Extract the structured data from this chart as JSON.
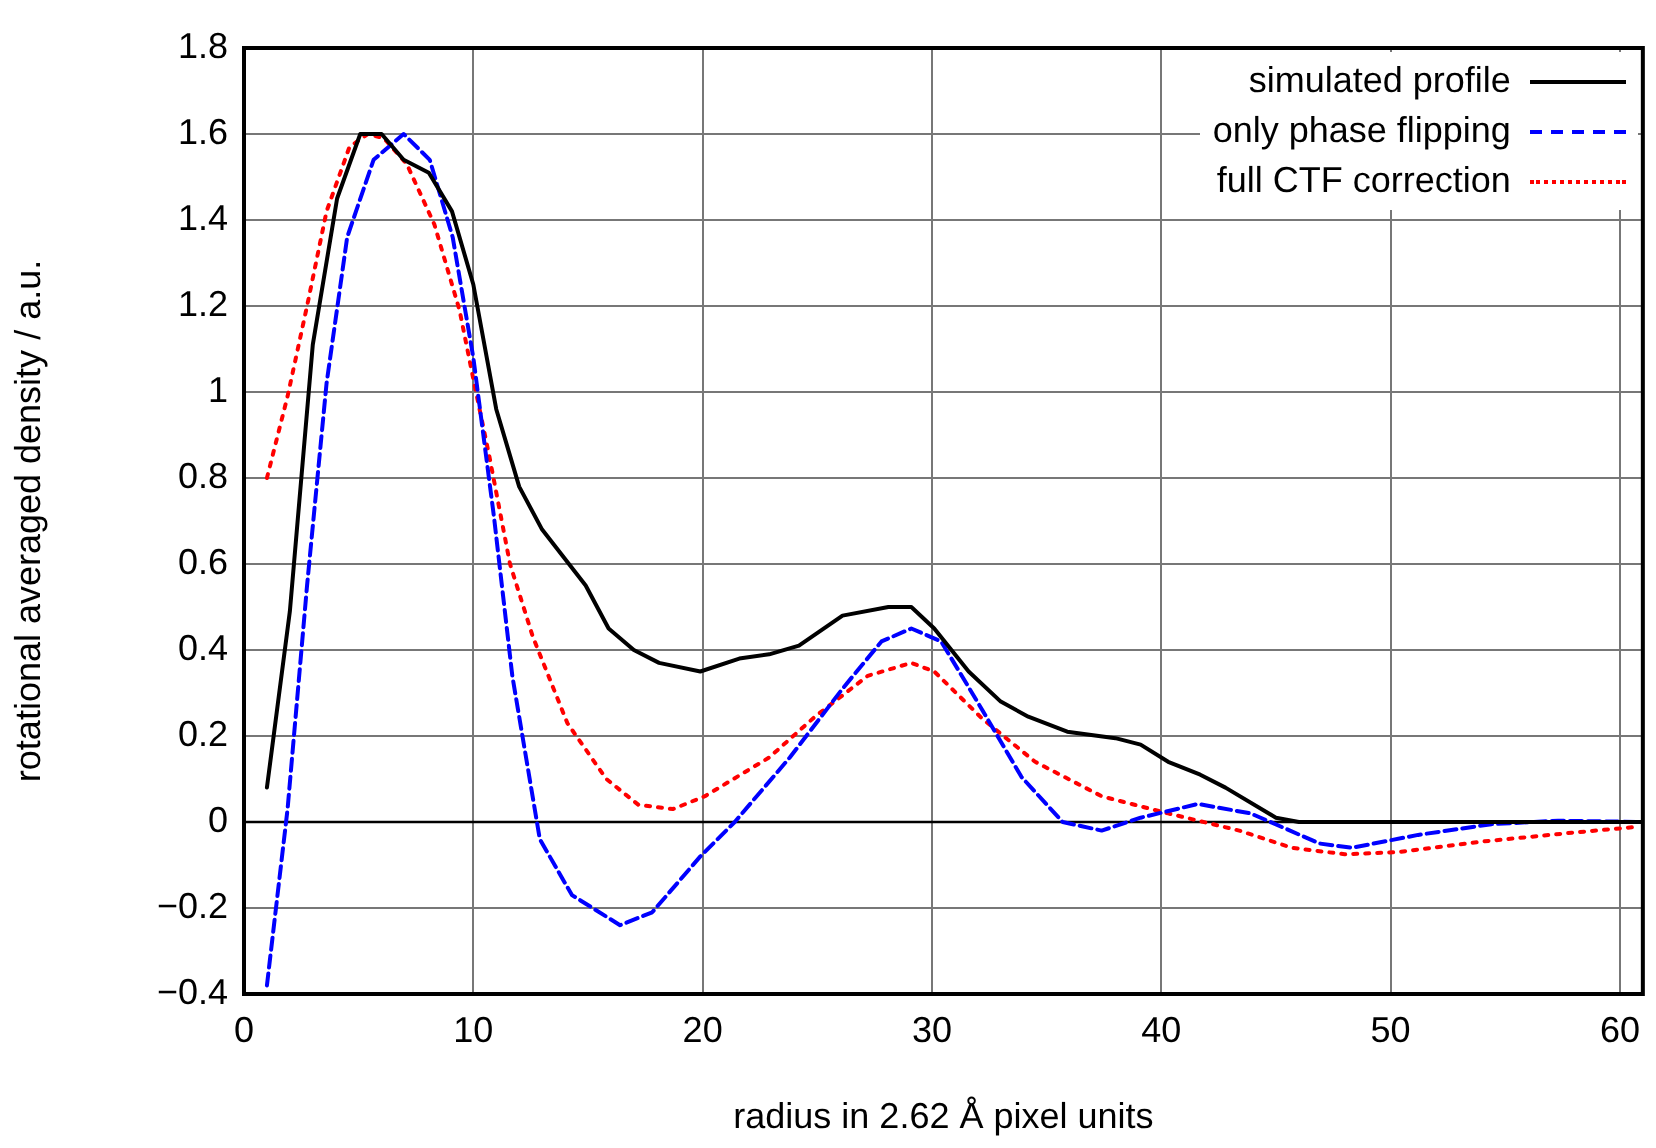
{
  "chart_data": {
    "type": "line",
    "xlabel": "radius in 2.62 Å pixel units",
    "ylabel": "rotational averaged density / a.u.",
    "xlim": [
      0,
      61
    ],
    "xticks": [
      0,
      10,
      20,
      30,
      40,
      50,
      60
    ],
    "ylim": [
      -0.4,
      1.8
    ],
    "yticks": [
      {
        "value": -0.4,
        "label": "−0.4"
      },
      {
        "value": -0.2,
        "label": "−0.2"
      },
      0,
      0.2,
      0.4,
      0.6,
      0.8,
      1,
      1.2,
      1.4,
      1.6,
      1.8
    ],
    "grid": true,
    "legend": "top right",
    "marker": "none",
    "ref_lines": [
      {
        "axis": "y",
        "value": 0,
        "color": "#000000",
        "line_style": "solid"
      }
    ],
    "series": [
      {
        "name": "simulated profile",
        "color": "#000000",
        "line_style": "solid",
        "x": [
          1.0,
          2.0,
          3.0,
          4.06,
          5.07,
          6.0,
          6.96,
          8.06,
          9.07,
          10,
          11,
          12,
          13,
          14.9,
          15.9,
          17,
          18.1,
          19.9,
          21.6,
          22.9,
          24.2,
          26.1,
          28.1,
          29.1,
          30.1,
          31.6,
          33,
          34.2,
          35.9,
          38,
          39.1,
          40.3,
          41.7,
          42.8,
          45,
          46,
          50,
          55,
          61
        ],
        "values": [
          0.08,
          0.49,
          1.11,
          1.45,
          1.6,
          1.6,
          1.54,
          1.51,
          1.42,
          1.25,
          0.96,
          0.78,
          0.68,
          0.55,
          0.45,
          0.4,
          0.37,
          0.35,
          0.38,
          0.39,
          0.41,
          0.48,
          0.5,
          0.5,
          0.45,
          0.35,
          0.28,
          0.245,
          0.21,
          0.195,
          0.18,
          0.14,
          0.11,
          0.08,
          0.01,
          0,
          0,
          0,
          0
        ]
      },
      {
        "name": "only phase flipping",
        "color": "#0000ff",
        "line_style": "dashed",
        "x": [
          1.0,
          1.9,
          2.75,
          3.6,
          4.5,
          5.65,
          6.96,
          8.1,
          9.1,
          10,
          10.9,
          11.7,
          12.9,
          14.3,
          16.4,
          17.8,
          19.9,
          21.4,
          23.8,
          26.1,
          27.8,
          29.1,
          30.4,
          32.2,
          33.9,
          35.7,
          37.4,
          39.1,
          41.6,
          43.9,
          46.9,
          48.3,
          51.2,
          54.4,
          57.3,
          61
        ],
        "values": [
          -0.38,
          0.03,
          0.55,
          1.02,
          1.36,
          1.54,
          1.6,
          1.54,
          1.36,
          1.08,
          0.71,
          0.34,
          -0.04,
          -0.17,
          -0.24,
          -0.21,
          -0.08,
          0,
          0.15,
          0.31,
          0.42,
          0.45,
          0.42,
          0.26,
          0.105,
          0,
          -0.02,
          0.01,
          0.042,
          0.02,
          -0.05,
          -0.06,
          -0.03,
          -0.005,
          0.003,
          0
        ]
      },
      {
        "name": "full CTF correction",
        "color": "#ff0000",
        "line_style": "dotted",
        "x": [
          1.0,
          1.9,
          2.75,
          3.6,
          4.6,
          5.4,
          6.1,
          7.1,
          8.3,
          9.4,
          10,
          10.7,
          11.6,
          12.6,
          14.1,
          15.8,
          17.2,
          18.7,
          20.1,
          22.9,
          24.9,
          27.2,
          29.1,
          30.1,
          32.2,
          34.5,
          37.4,
          40.3,
          43.4,
          45.7,
          48,
          50.3,
          54.1,
          57.9,
          60.6
        ],
        "values": [
          0.8,
          0.99,
          1.2,
          1.42,
          1.57,
          1.6,
          1.59,
          1.53,
          1.39,
          1.19,
          1.03,
          0.85,
          0.6,
          0.43,
          0.23,
          0.1,
          0.04,
          0.03,
          0.06,
          0.15,
          0.245,
          0.34,
          0.37,
          0.35,
          0.24,
          0.14,
          0.06,
          0.02,
          -0.02,
          -0.06,
          -0.075,
          -0.07,
          -0.045,
          -0.025,
          -0.012
        ]
      }
    ]
  }
}
